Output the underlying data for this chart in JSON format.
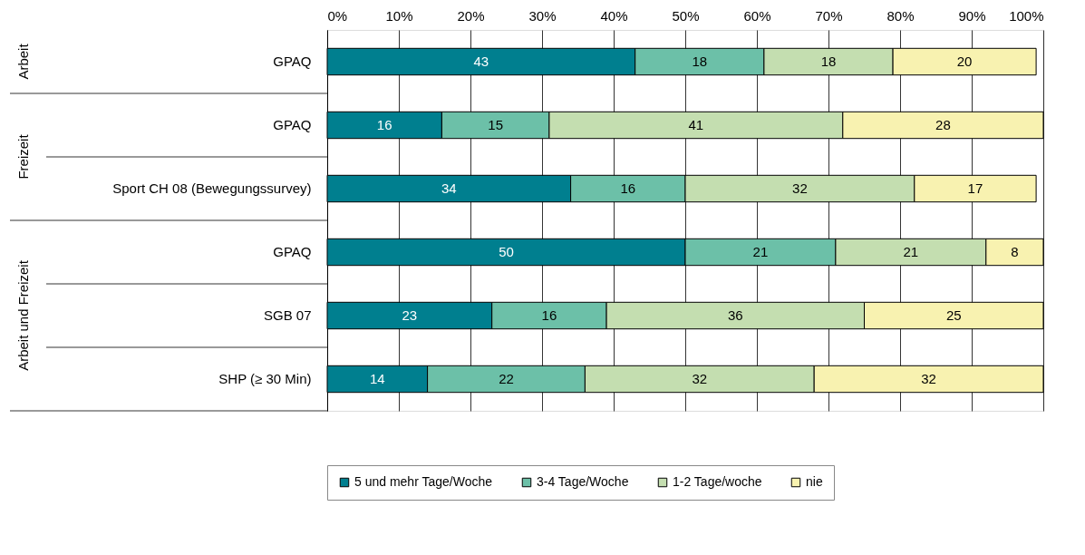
{
  "chart_data": {
    "type": "bar",
    "orientation": "horizontal",
    "stacked": true,
    "categories": [
      "GPAQ",
      "GPAQ",
      "Sport CH 08 (Bewegungssurvey)",
      "GPAQ",
      "SGB 07",
      "SHP (≥ 30 Min)"
    ],
    "series": [
      {
        "name": "5 und mehr Tage/Woche",
        "color": "#007f8f",
        "values": [
          43,
          16,
          34,
          50,
          23,
          14
        ]
      },
      {
        "name": "3-4 Tage/Woche",
        "color": "#6cc0a8",
        "values": [
          18,
          15,
          16,
          21,
          16,
          22
        ]
      },
      {
        "name": "1-2 Tage/woche",
        "color": "#c4deb0",
        "values": [
          18,
          41,
          32,
          21,
          36,
          32
        ]
      },
      {
        "name": "nie",
        "color": "#f8f2b0",
        "values": [
          20,
          28,
          17,
          8,
          25,
          32
        ]
      }
    ],
    "xlim": [
      0,
      100
    ],
    "xticks": [
      {
        "value": 0,
        "label": "0%"
      },
      {
        "value": 10,
        "label": "10%"
      },
      {
        "value": 20,
        "label": "20%"
      },
      {
        "value": 30,
        "label": "30%"
      },
      {
        "value": 40,
        "label": "40%"
      },
      {
        "value": 50,
        "label": "50%"
      },
      {
        "value": 60,
        "label": "60%"
      },
      {
        "value": 70,
        "label": "70%"
      },
      {
        "value": 80,
        "label": "80%"
      },
      {
        "value": 90,
        "label": "90%"
      },
      {
        "value": 100,
        "label": "100%"
      }
    ],
    "annotations": [
      "Arbeit",
      "Freizeit",
      "Arbeit und Freizeit"
    ],
    "data_labels": true,
    "grid": "x",
    "legend": "bottom"
  }
}
